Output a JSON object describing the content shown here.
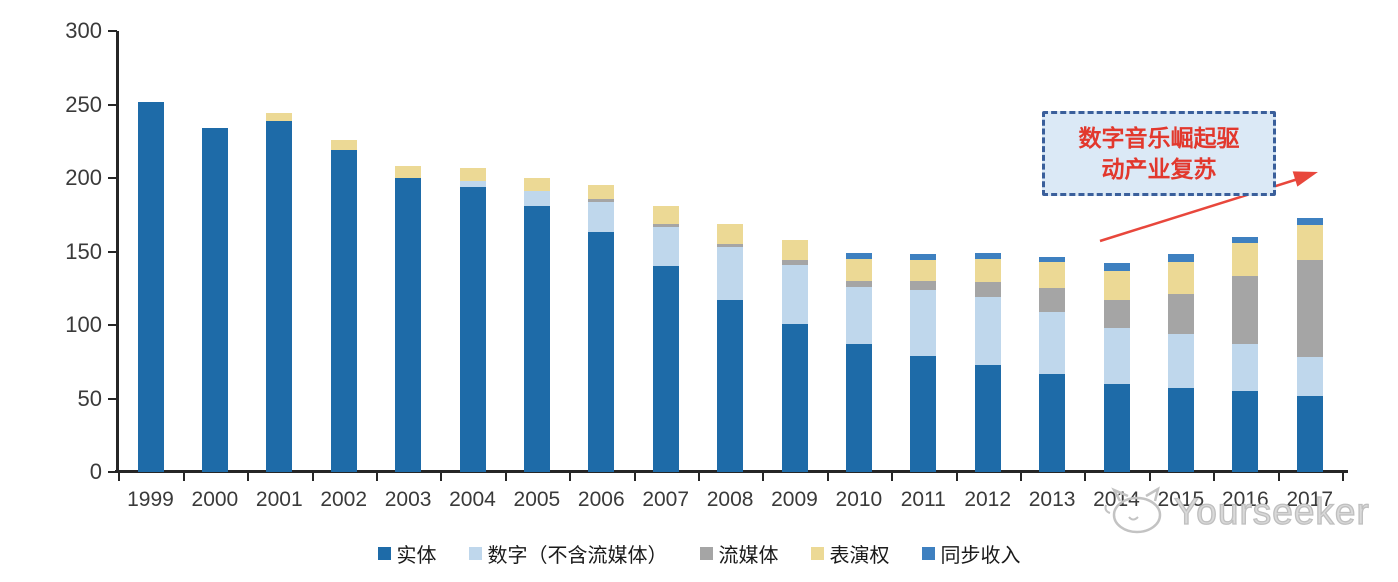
{
  "chart_data": {
    "type": "bar",
    "stacked": true,
    "title": "",
    "xlabel": "",
    "ylabel": "",
    "x": [
      "1999",
      "2000",
      "2001",
      "2002",
      "2003",
      "2004",
      "2005",
      "2006",
      "2007",
      "2008",
      "2009",
      "2010",
      "2011",
      "2012",
      "2013",
      "2014",
      "2015",
      "2016",
      "2017"
    ],
    "series": [
      {
        "name": "实体",
        "color": "#1E6BA8",
        "values": [
          252,
          234,
          239,
          219,
          200,
          194,
          181,
          163,
          140,
          117,
          101,
          87,
          79,
          73,
          67,
          60,
          57,
          55,
          52
        ]
      },
      {
        "name": "数字（不含流媒体）",
        "color": "#BFD7EC",
        "values": [
          0,
          0,
          0,
          0,
          0,
          4,
          10,
          21,
          27,
          36,
          40,
          39,
          45,
          46,
          42,
          38,
          37,
          32,
          26
        ]
      },
      {
        "name": "流媒体",
        "color": "#A5A5A5",
        "values": [
          0,
          0,
          0,
          0,
          0,
          0,
          0,
          2,
          2,
          2,
          3,
          4,
          6,
          10,
          16,
          19,
          27,
          46,
          66
        ]
      },
      {
        "name": "表演权",
        "color": "#ECD995",
        "values": [
          0,
          0,
          5,
          7,
          8,
          9,
          9,
          9,
          12,
          14,
          14,
          15,
          14,
          16,
          18,
          20,
          22,
          23,
          24
        ]
      },
      {
        "name": "同步收入",
        "color": "#3E80C0",
        "values": [
          0,
          0,
          0,
          0,
          0,
          0,
          0,
          0,
          0,
          0,
          0,
          4,
          4,
          4,
          3,
          5,
          5,
          4,
          5
        ]
      }
    ],
    "ylim": [
      0,
      300
    ],
    "yticks": [
      0,
      50,
      100,
      150,
      200,
      250,
      300
    ],
    "grid": false,
    "legend_position": "bottom"
  },
  "annotation": {
    "line1": "数字音乐崛起驱",
    "line2": "动产业复苏",
    "text_color": "#E2382D",
    "border_color": "#3A5F9B",
    "fill_color": "#DBE9F6",
    "arrow_color": "#E8473C"
  },
  "watermark": {
    "brand": "Yourseeker",
    "logo": "cat-face-icon",
    "color": "#c3c3c3"
  }
}
